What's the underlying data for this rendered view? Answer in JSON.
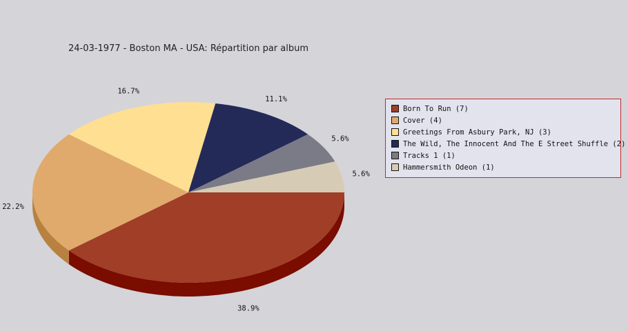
{
  "chart_data": {
    "type": "pie",
    "title": "24-03-1977 - Boston MA - USA:  Répartition par album",
    "slices": [
      {
        "label": "Born To Run (7)",
        "value": 7,
        "percent_label": "38.9%",
        "color": "#a03e27",
        "side_color": "#7a0c00"
      },
      {
        "label": "Cover (4)",
        "value": 4,
        "percent_label": "22.2%",
        "color": "#e0aa6c",
        "side_color": "#b88140"
      },
      {
        "label": "Greetings From Asbury Park, NJ (3)",
        "value": 3,
        "percent_label": "16.7%",
        "color": "#ffdf92",
        "side_color": "#c9aa5e"
      },
      {
        "label": "The Wild, The Innocent And The E Street Shuffle (2)",
        "value": 2,
        "percent_label": "11.1%",
        "color": "#232a58",
        "side_color": "#12163a"
      },
      {
        "label": "Tracks 1 (1)",
        "value": 1,
        "percent_label": "5.6%",
        "color": "#7b7b87",
        "side_color": "#55555e"
      },
      {
        "label": "Hammersmith Odeon  (1)",
        "value": 1,
        "percent_label": "5.6%",
        "color": "#d6ccb6",
        "side_color": "#a89e88"
      }
    ],
    "legend_position": "right"
  },
  "colors": {
    "background": "#d5d4d8",
    "legend_background": "#e3e3ee",
    "legend_border": "#c0282a"
  }
}
